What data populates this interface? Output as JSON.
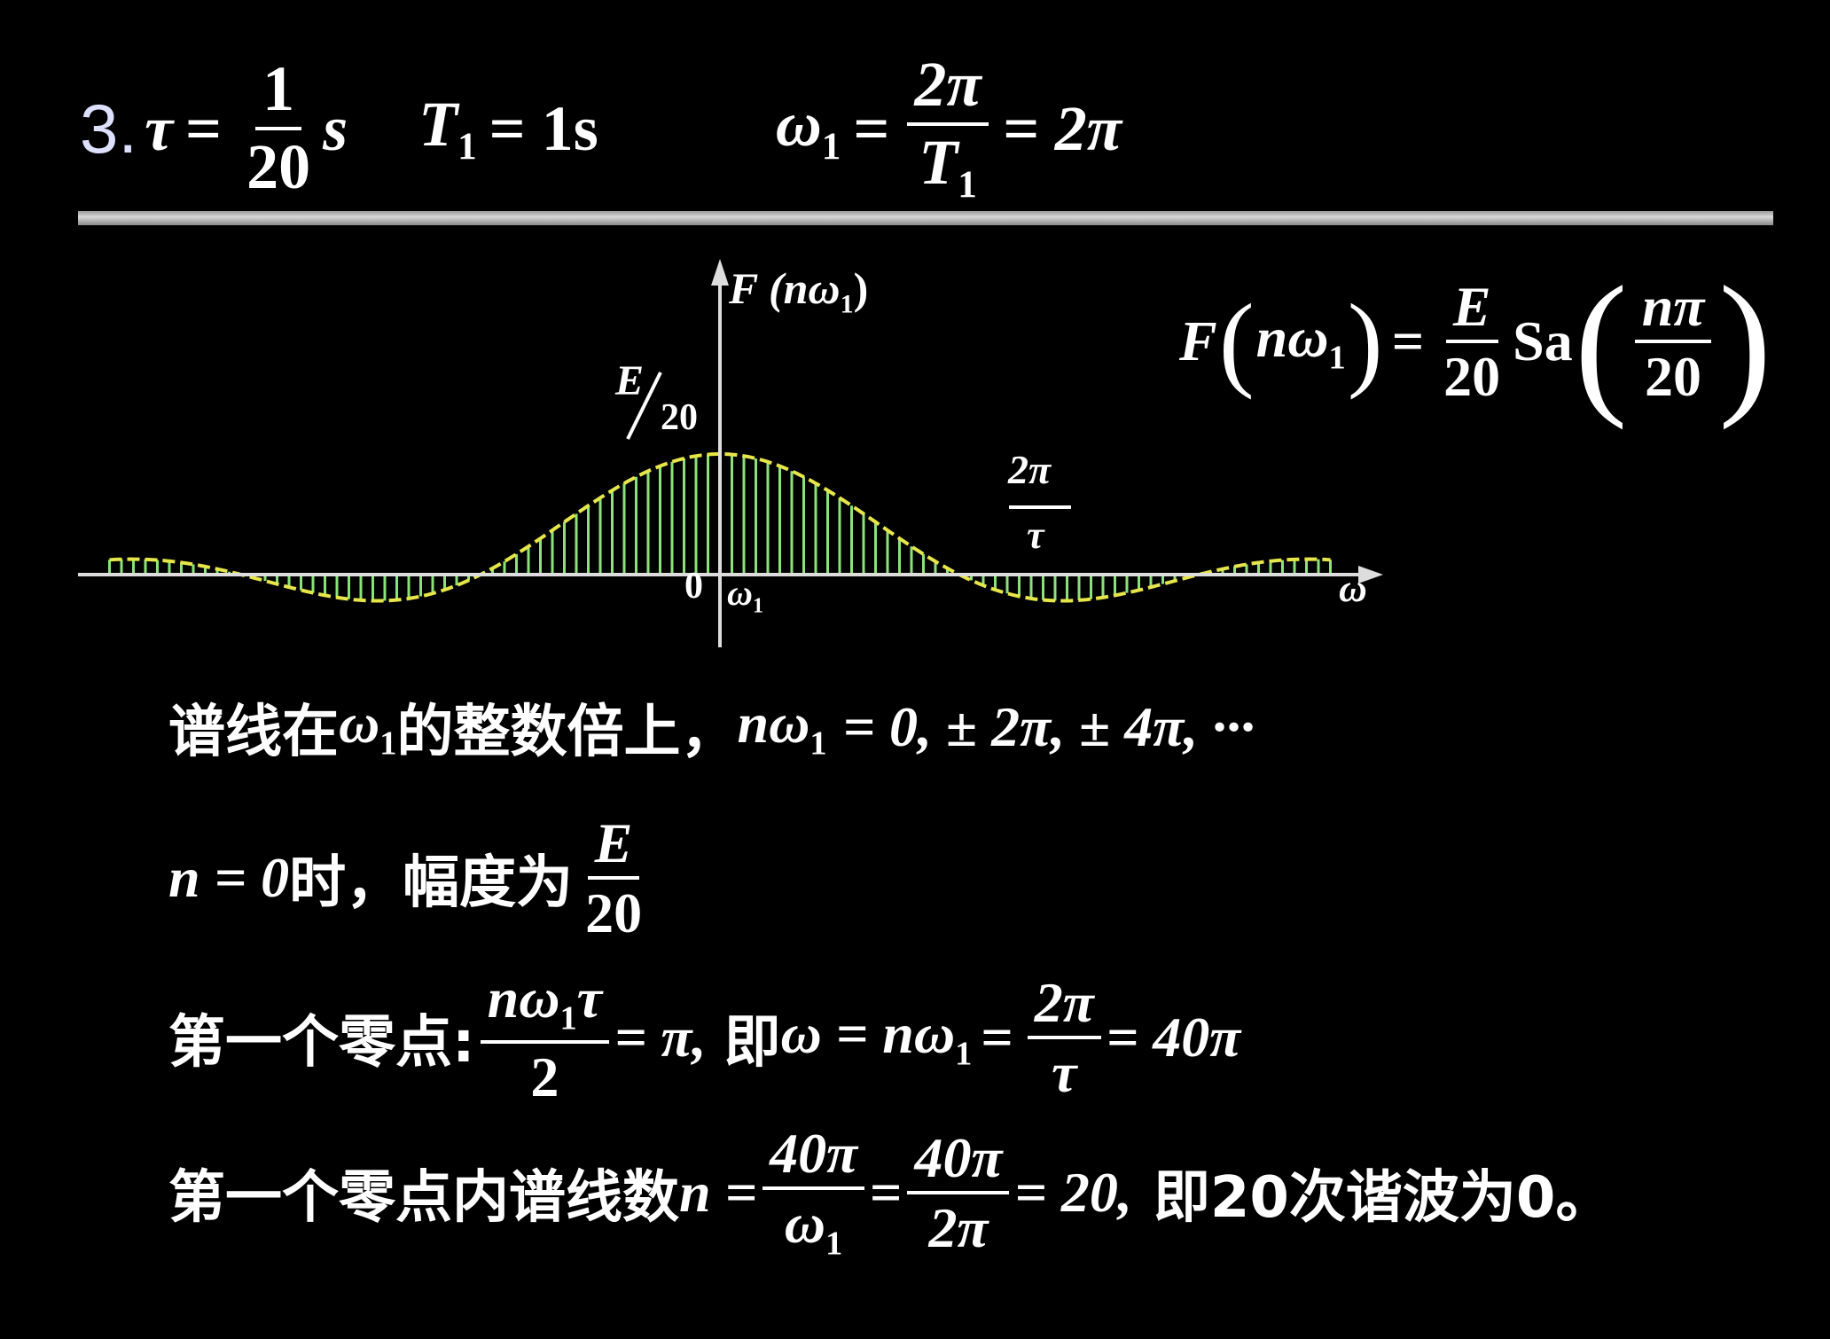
{
  "title": {
    "number": "3.",
    "tau": "τ",
    "eq": "=",
    "tau_num": "1",
    "tau_den": "20",
    "tau_unit": "s",
    "T1_sym": "T",
    "T1_sub": "1",
    "T1_val": "= 1s",
    "omega_sym": "ω",
    "omega_sub": "1",
    "omega_eq": "=",
    "omega_num": "2π",
    "omega_den_sym": "T",
    "omega_den_sub": "1",
    "omega_result": "= 2π"
  },
  "graph": {
    "y_label": "F (nω",
    "y_label_sub": "1",
    "y_label_end": ")",
    "peak_num": "E",
    "peak_den": "20",
    "zero_label_num": "2π",
    "zero_label_den": "τ",
    "origin": "0",
    "omega1": "ω",
    "omega1_sub": "1",
    "x_label": "ω"
  },
  "formula": {
    "lhs": "F",
    "lhs_arg": "nω",
    "lhs_sub": "1",
    "eq": "=",
    "num": "E",
    "den": "20",
    "sa": "Sa",
    "arg_num": "nπ",
    "arg_den": "20"
  },
  "lines": {
    "l1_cn": "谱线在",
    "l1_omega": "ω",
    "l1_sub": "1",
    "l1_cn2": "的整数倍上，",
    "l1_math": "nω",
    "l1_math_sub": "1",
    "l1_rest": "= 0, ± 2π, ± 4π, ···",
    "l2_n": "n = 0",
    "l2_cn": "时，幅度为",
    "l2_num": "E",
    "l2_den": "20",
    "l3_cn": "第一个零点:",
    "l3_num": "nω",
    "l3_num_sub": "1",
    "l3_num_end": "τ",
    "l3_den": "2",
    "l3_eq": "= π,",
    "l3_cn2": "即",
    "l3_mid": "ω = nω",
    "l3_mid_sub": "1",
    "l3_eq2": "=",
    "l3_num2": "2π",
    "l3_den2": "τ",
    "l3_result": "= 40π",
    "l4_cn": "第一个零点内谱线数",
    "l4_n": "n =",
    "l4_num1": "40π",
    "l4_den1": "ω",
    "l4_den1_sub": "1",
    "l4_eq": "=",
    "l4_num2": "40π",
    "l4_den2": "2π",
    "l4_result": "= 20,",
    "l4_cn2": "即20次谐波为0。"
  },
  "colors": {
    "background": "#000000",
    "spectral_lines": "#8be27a",
    "envelope": "#e6e64a",
    "text": "#ffffff"
  }
}
